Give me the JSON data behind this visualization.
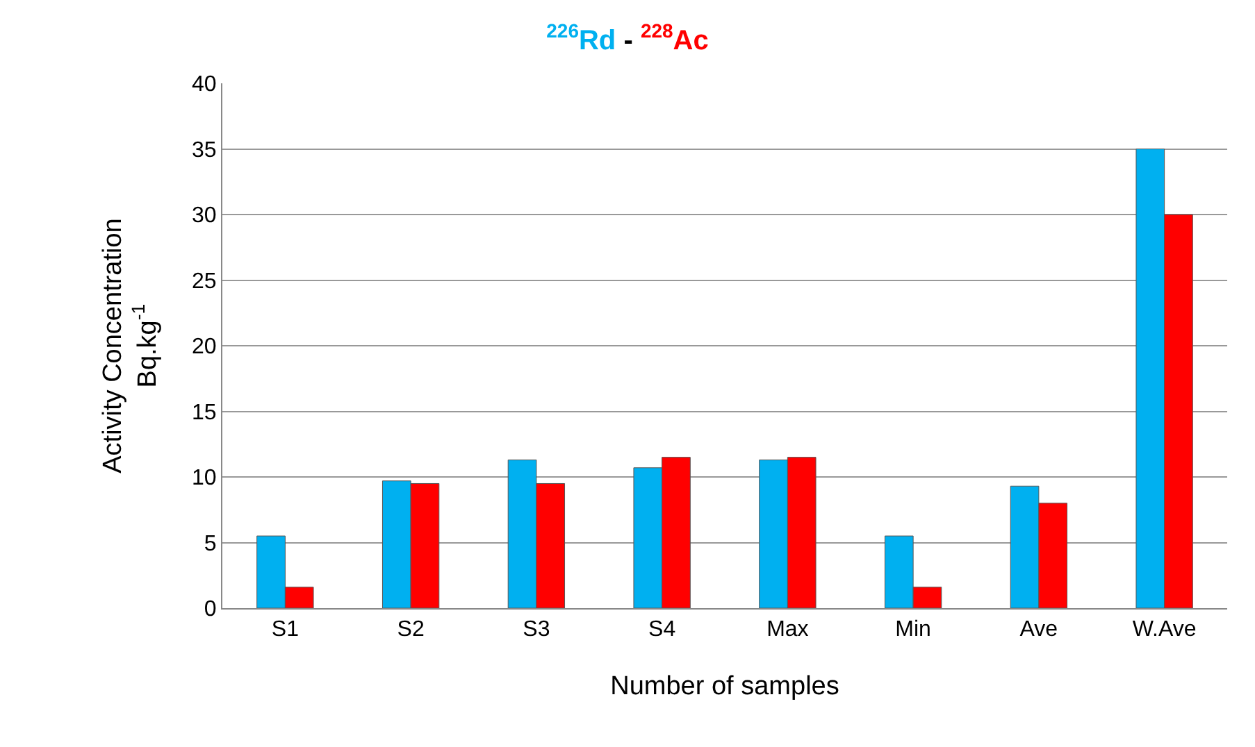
{
  "chart_data": {
    "type": "bar",
    "title": "-",
    "xlabel": "Number of samples",
    "ylabel": "Activity Concentration\nBq.kg$^{-1}$",
    "categories": [
      "S1",
      "S2",
      "S3",
      "S4",
      "Max",
      "Min",
      "Ave",
      "W.Ave"
    ],
    "series": [
      {
        "name": "$^{226}$Rd",
        "color": "#00b0f0",
        "values": [
          5.5,
          9.7,
          11.3,
          10.7,
          11.3,
          5.5,
          9.3,
          35
        ]
      },
      {
        "name": "$^{228}$Ac",
        "color": "#ff0000",
        "values": [
          1.6,
          9.5,
          9.5,
          11.5,
          11.5,
          1.6,
          8.0,
          30
        ]
      }
    ],
    "ylim": [
      0,
      40
    ],
    "yticks": [
      0,
      5,
      10,
      15,
      20,
      25,
      30,
      35,
      40
    ],
    "grid": "y",
    "legend": false
  }
}
